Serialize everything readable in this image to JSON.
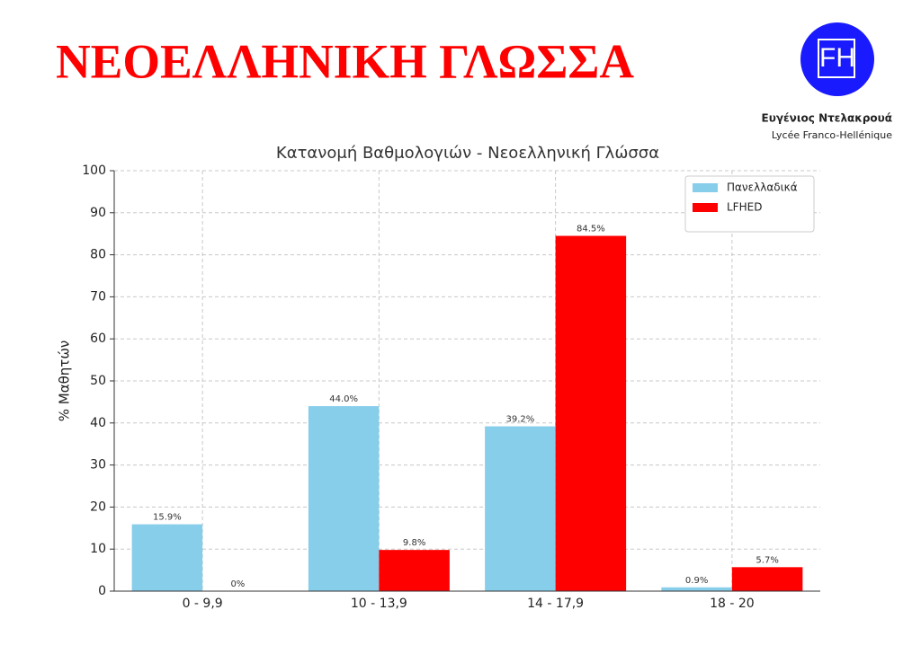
{
  "slide": {
    "title": "ΝΕΟΕΛΛΗΝΙΚΗ ΓΛΩΣΣΑ",
    "logo_text": "FH",
    "school_name": "Ευγένιος Ντελακρουά",
    "school_subtitle": "Lycée Franco-Hellénique"
  },
  "chart_data": {
    "type": "bar",
    "title": "Κατανομή Βαθμολογιών - Νεοελληνική Γλώσσα",
    "y_label": "% Μαθητών",
    "categories": [
      "0 - 9,9",
      "10 - 13,9",
      "14 - 17,9",
      "18 - 20"
    ],
    "series": [
      {
        "name": "Πανελλαδικά",
        "color": "#87ceeb",
        "values": [
          15.9,
          44.0,
          39.2,
          0.9
        ],
        "value_labels": [
          "15.9%",
          "44.0%",
          "39.2%",
          "0.9%"
        ]
      },
      {
        "name": "LFHED",
        "color": "#ff0000",
        "values": [
          0,
          9.8,
          84.5,
          5.7
        ],
        "value_labels": [
          "0%",
          "9.8%",
          "84.5%",
          "5.7%"
        ]
      }
    ],
    "ylim": [
      0,
      100
    ],
    "yticks": [
      0,
      10,
      20,
      30,
      40,
      50,
      60,
      70,
      80,
      90,
      100
    ],
    "grid": true,
    "legend": "upper right"
  }
}
